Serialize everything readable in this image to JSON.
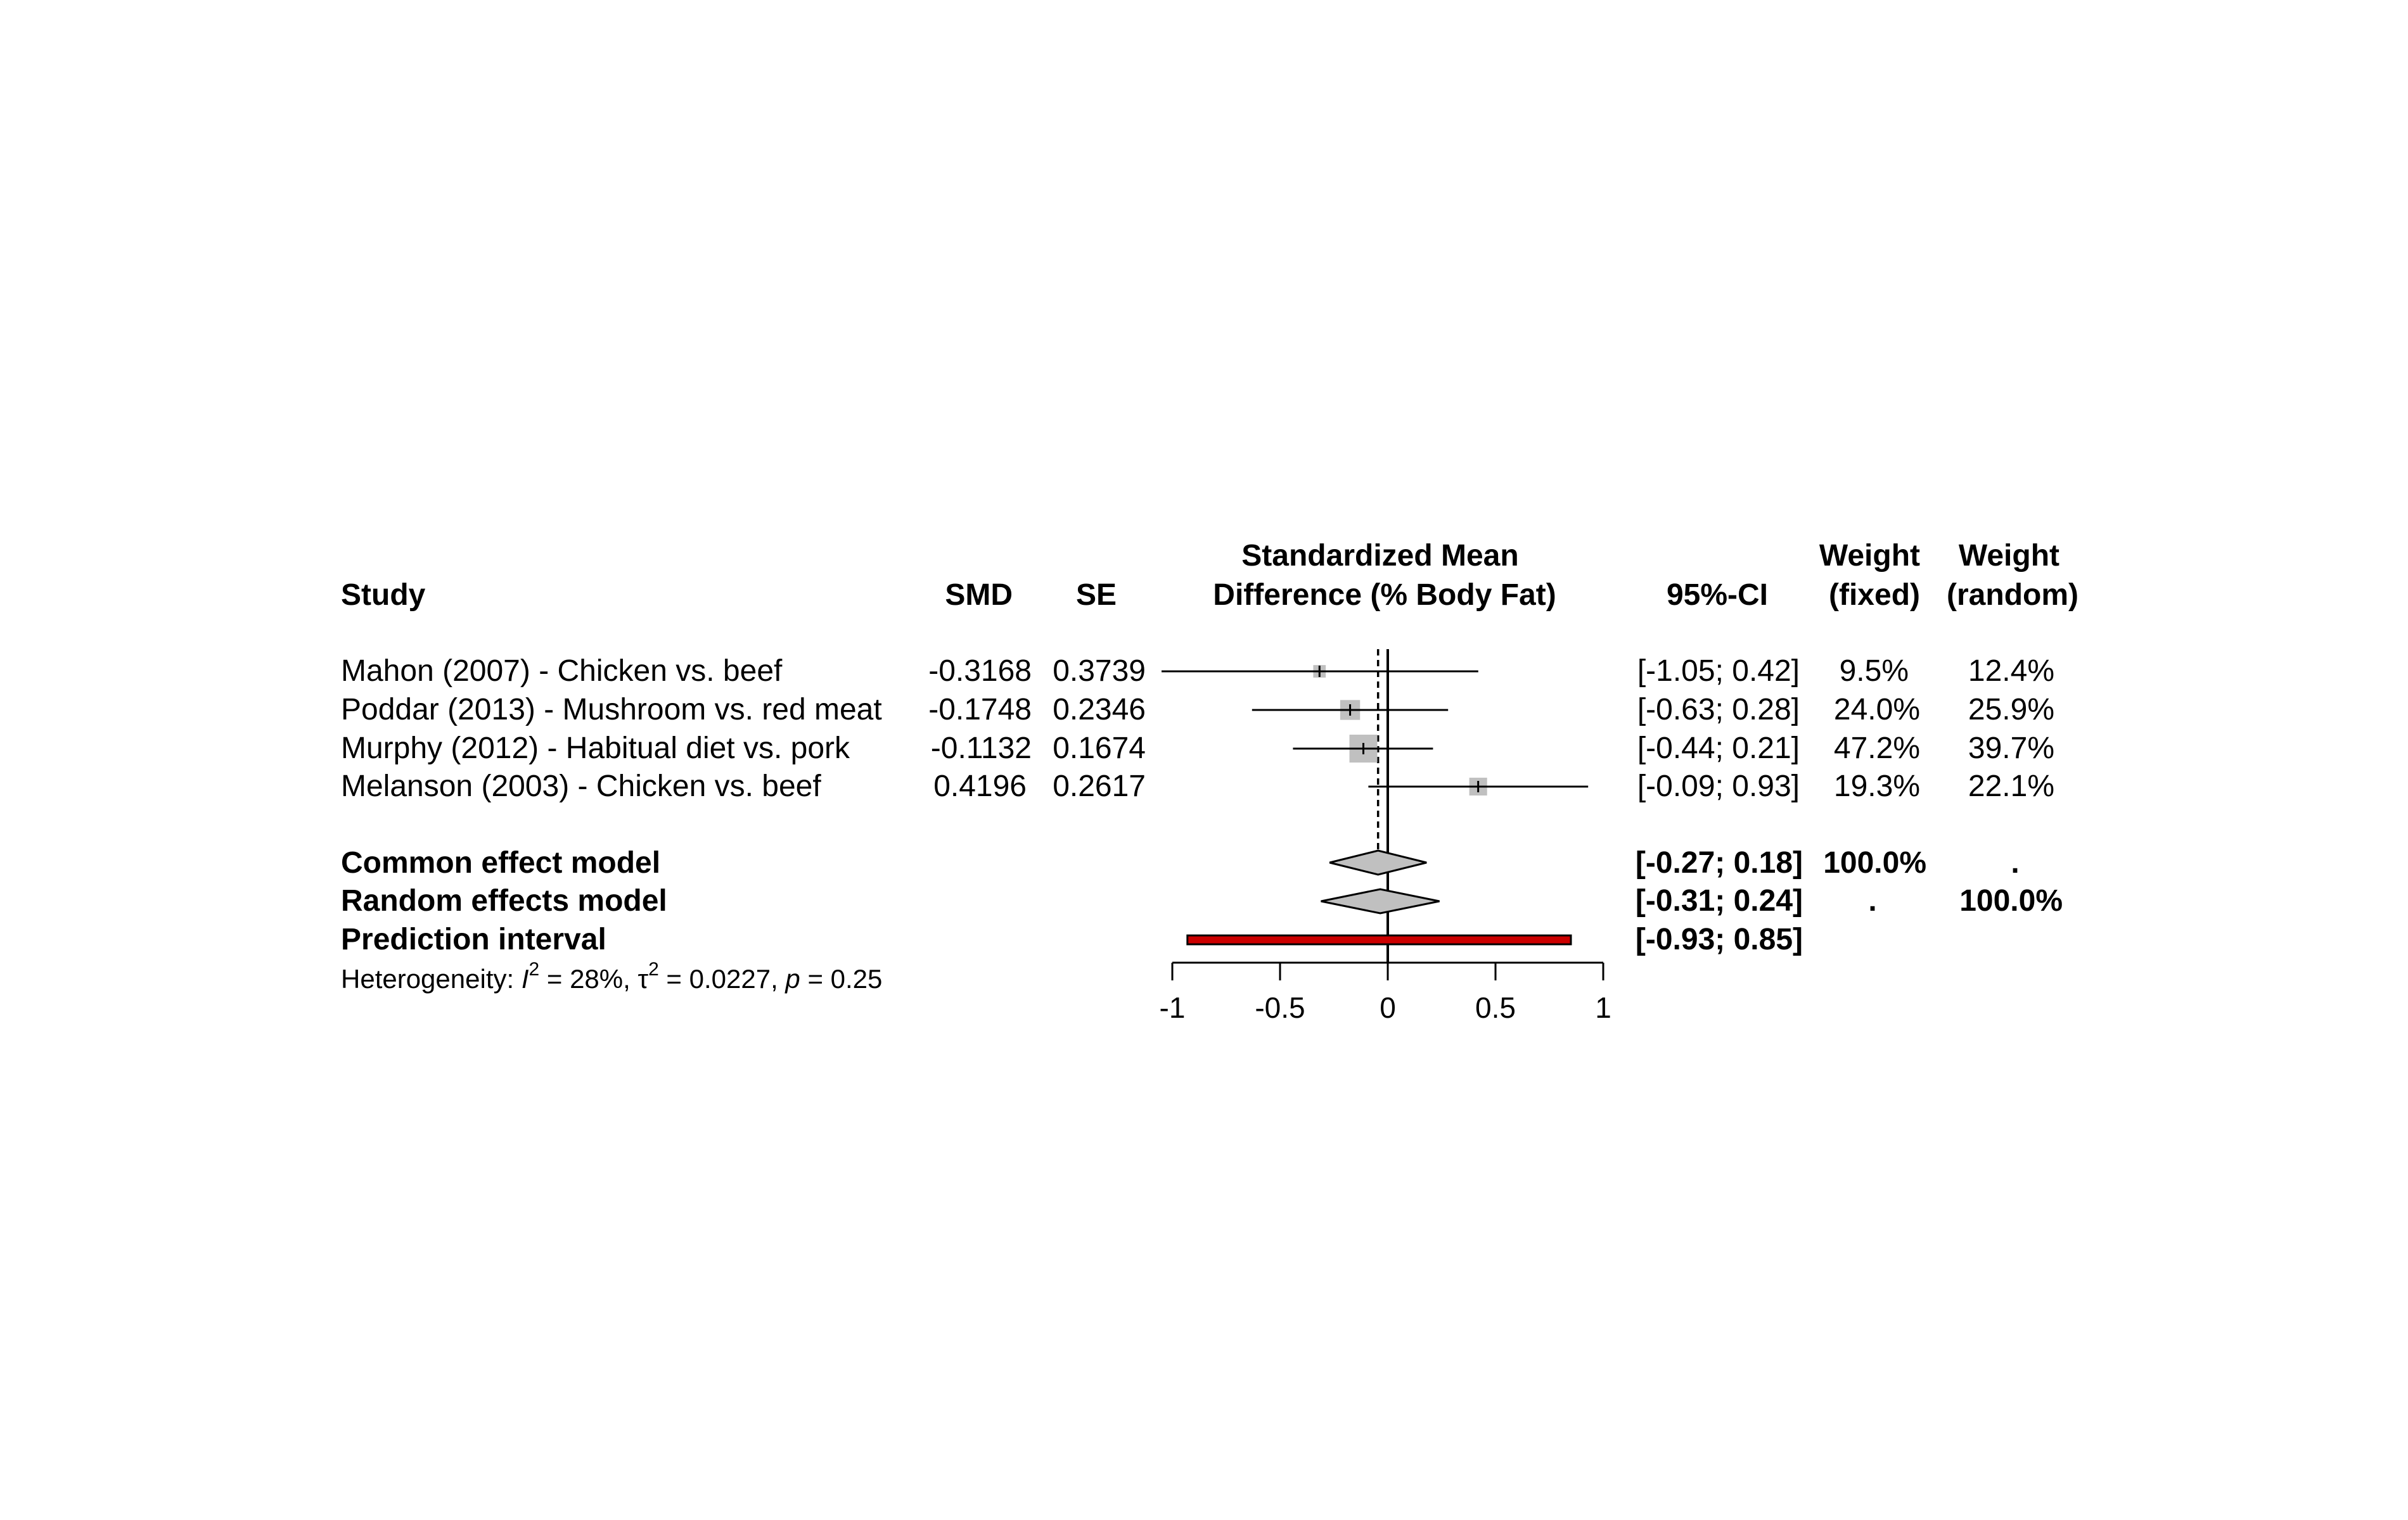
{
  "headers": {
    "study": "Study",
    "smd": "SMD",
    "se": "SE",
    "plot_line1": "Standardized Mean",
    "plot_line2": "Difference (% Body Fat)",
    "ci": "95%-CI",
    "weight_fixed_line1": "Weight",
    "weight_fixed_line2": "(fixed)",
    "weight_random_line1": "Weight",
    "weight_random_line2": "(random)"
  },
  "studies": [
    {
      "label": "Mahon (2007) - Chicken vs. beef",
      "smd": "-0.3168",
      "se": "0.3739",
      "ci": "[-1.05; 0.42]",
      "w_fixed": "9.5%",
      "w_random": "12.4%"
    },
    {
      "label": "Poddar (2013) - Mushroom vs. red meat",
      "smd": "-0.1748",
      "se": "0.2346",
      "ci": "[-0.63; 0.28]",
      "w_fixed": "24.0%",
      "w_random": "25.9%"
    },
    {
      "label": "Murphy (2012) - Habitual diet vs. pork",
      "smd": "-0.1132",
      "se": "0.1674",
      "ci": "[-0.44; 0.21]",
      "w_fixed": "47.2%",
      "w_random": "39.7%"
    },
    {
      "label": "Melanson (2003) - Chicken vs. beef",
      "smd": "0.4196",
      "se": "0.2617",
      "ci": "[-0.09; 0.93]",
      "w_fixed": "19.3%",
      "w_random": "22.1%"
    }
  ],
  "summaries": {
    "common": {
      "label": "Common effect model",
      "ci": "[-0.27; 0.18]",
      "w_fixed": "100.0%",
      "w_random": "."
    },
    "random": {
      "label": "Random effects model",
      "ci": "[-0.31; 0.24]",
      "w_fixed": ".",
      "w_random": "100.0%"
    },
    "prediction": {
      "label": "Prediction interval",
      "ci": "[-0.93; 0.85]"
    }
  },
  "heterogeneity": {
    "prefix": "Heterogeneity: ",
    "i2_symbol": "I",
    "i2_value": " = 28%, ",
    "tau_symbol": "τ",
    "tau_value": " = 0.0227, ",
    "p_symbol": "p",
    "p_value": " = 0.25",
    "exponent": "2"
  },
  "chart_data": {
    "type": "forest",
    "xlim": [
      -1,
      1
    ],
    "x_ticks": [
      -1,
      -0.5,
      0,
      0.5,
      1
    ],
    "x_tick_labels": [
      "-1",
      "-0.5",
      "0",
      "0.5",
      "1"
    ],
    "null_line": 0,
    "study_points": [
      {
        "est": -0.3168,
        "lower": -1.05,
        "upper": 0.42,
        "weight_fixed": 9.5
      },
      {
        "est": -0.1748,
        "lower": -0.63,
        "upper": 0.28,
        "weight_fixed": 24.0
      },
      {
        "est": -0.1132,
        "lower": -0.44,
        "upper": 0.21,
        "weight_fixed": 47.2
      },
      {
        "est": 0.4196,
        "lower": -0.09,
        "upper": 0.93,
        "weight_fixed": 19.3
      }
    ],
    "common_effect": {
      "est": -0.045,
      "lower": -0.27,
      "upper": 0.18
    },
    "random_effects": {
      "est": -0.035,
      "lower": -0.31,
      "upper": 0.24
    },
    "prediction_interval": {
      "lower": -0.93,
      "upper": 0.85
    },
    "colors": {
      "square": "#c0c0c0",
      "diamond": "#c0c0c0",
      "prediction": "#cc0000",
      "line": "#000000"
    }
  }
}
